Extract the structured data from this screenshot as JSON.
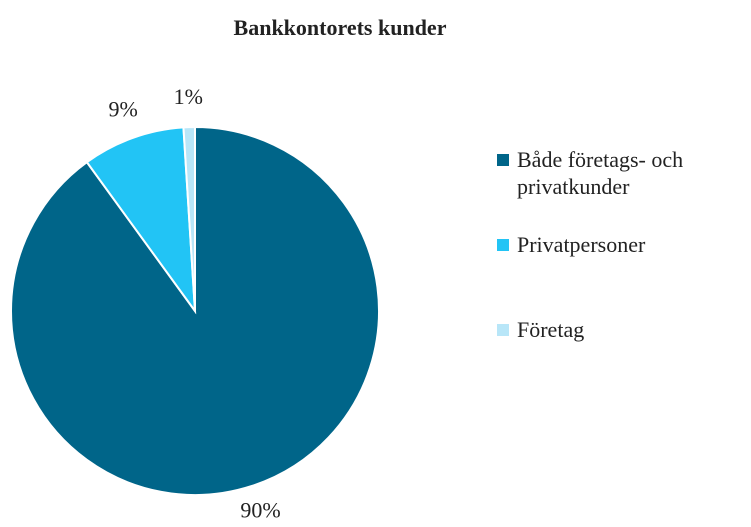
{
  "chart_data": {
    "type": "pie",
    "title": "Bankkontorets kunder",
    "categories": [
      "Både företags- och privatkunder",
      "Privatpersoner",
      "Företag"
    ],
    "values": [
      90,
      9,
      1
    ],
    "value_labels": [
      "90%",
      "9%",
      "1%"
    ],
    "colors": [
      "#006589",
      "#22c4f5",
      "#b8e6f8"
    ],
    "legend": "right"
  }
}
